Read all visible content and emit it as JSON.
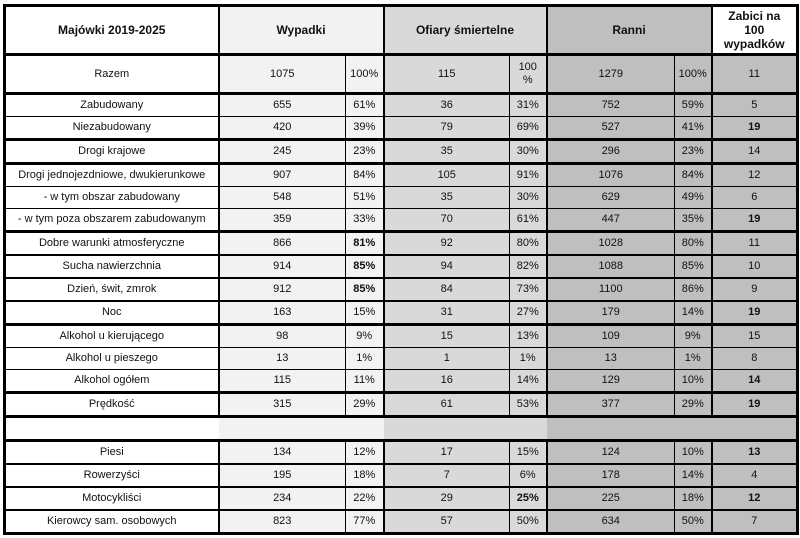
{
  "table": {
    "headers": {
      "label": "Majówki 2019-2025",
      "wypadki": "Wypadki",
      "ofiary": "Ofiary śmiertelne",
      "ranni": "Ranni",
      "zabici": "Zabici na\n100\nwypadków"
    },
    "colors": {
      "label_bg": "#ffffff",
      "wypadki_bg": "#f2f2f2",
      "ofiary_bg": "#d9d9d9",
      "ranni_bg": "#bfbfbf",
      "zabici_bg": "#bfbfbf",
      "border": "#000000",
      "text": "#111111"
    },
    "rows": [
      {
        "label": "Razem",
        "wypadki": "1075",
        "wypadki_pct": "100%",
        "ofiary": "115",
        "ofiary_pct": "100\n%",
        "ranni": "1279",
        "ranni_pct": "100%",
        "zabici_na_100": "11",
        "bold_cells": [],
        "separator": "heavy",
        "tall": true
      },
      {
        "label": "Zabudowany",
        "wypadki": "655",
        "wypadki_pct": "61%",
        "ofiary": "36",
        "ofiary_pct": "31%",
        "ranni": "752",
        "ranni_pct": "59%",
        "zabici_na_100": "5",
        "bold_cells": [],
        "separator": "thin"
      },
      {
        "label": "Niezabudowany",
        "wypadki": "420",
        "wypadki_pct": "39%",
        "ofiary": "79",
        "ofiary_pct": "69%",
        "ranni": "527",
        "ranni_pct": "41%",
        "zabici_na_100": "19",
        "bold_cells": [
          "zabici_na_100"
        ],
        "separator": "heavy"
      },
      {
        "label": "Drogi krajowe",
        "wypadki": "245",
        "wypadki_pct": "23%",
        "ofiary": "35",
        "ofiary_pct": "30%",
        "ranni": "296",
        "ranni_pct": "23%",
        "zabici_na_100": "14",
        "bold_cells": [],
        "separator": "heavy"
      },
      {
        "label": "Drogi jednojezdniowe, dwukierunkowe",
        "wypadki": "907",
        "wypadki_pct": "84%",
        "ofiary": "105",
        "ofiary_pct": "91%",
        "ranni": "1076",
        "ranni_pct": "84%",
        "zabici_na_100": "12",
        "bold_cells": [],
        "separator": "thin"
      },
      {
        "label": "- w tym obszar zabudowany",
        "wypadki": "548",
        "wypadki_pct": "51%",
        "ofiary": "35",
        "ofiary_pct": "30%",
        "ranni": "629",
        "ranni_pct": "49%",
        "zabici_na_100": "6",
        "bold_cells": [],
        "separator": "thin"
      },
      {
        "label": "- w tym poza obszarem zabudowanym",
        "wypadki": "359",
        "wypadki_pct": "33%",
        "ofiary": "70",
        "ofiary_pct": "61%",
        "ranni": "447",
        "ranni_pct": "35%",
        "zabici_na_100": "19",
        "bold_cells": [
          "zabici_na_100"
        ],
        "separator": "heavy"
      },
      {
        "label": "Dobre warunki atmosferyczne",
        "wypadki": "866",
        "wypadki_pct": "81%",
        "ofiary": "92",
        "ofiary_pct": "80%",
        "ranni": "1028",
        "ranni_pct": "80%",
        "zabici_na_100": "11",
        "bold_cells": [
          "wypadki_pct"
        ],
        "separator": "medium"
      },
      {
        "label": "Sucha nawierzchnia",
        "wypadki": "914",
        "wypadki_pct": "85%",
        "ofiary": "94",
        "ofiary_pct": "82%",
        "ranni": "1088",
        "ranni_pct": "85%",
        "zabici_na_100": "10",
        "bold_cells": [
          "wypadki_pct"
        ],
        "separator": "medium"
      },
      {
        "label": "Dzień, świt, zmrok",
        "wypadki": "912",
        "wypadki_pct": "85%",
        "ofiary": "84",
        "ofiary_pct": "73%",
        "ranni": "1100",
        "ranni_pct": "86%",
        "zabici_na_100": "9",
        "bold_cells": [
          "wypadki_pct"
        ],
        "separator": "medium"
      },
      {
        "label": "Noc",
        "wypadki": "163",
        "wypadki_pct": "15%",
        "ofiary": "31",
        "ofiary_pct": "27%",
        "ranni": "179",
        "ranni_pct": "14%",
        "zabici_na_100": "19",
        "bold_cells": [
          "zabici_na_100"
        ],
        "separator": "heavy"
      },
      {
        "label": "Alkohol u kierującego",
        "wypadki": "98",
        "wypadki_pct": "9%",
        "ofiary": "15",
        "ofiary_pct": "13%",
        "ranni": "109",
        "ranni_pct": "9%",
        "zabici_na_100": "15",
        "bold_cells": [],
        "separator": "thin"
      },
      {
        "label": "Alkohol u pieszego",
        "wypadki": "13",
        "wypadki_pct": "1%",
        "ofiary": "1",
        "ofiary_pct": "1%",
        "ranni": "13",
        "ranni_pct": "1%",
        "zabici_na_100": "8",
        "bold_cells": [],
        "separator": "thin"
      },
      {
        "label": "Alkohol ogółem",
        "wypadki": "115",
        "wypadki_pct": "11%",
        "ofiary": "16",
        "ofiary_pct": "14%",
        "ranni": "129",
        "ranni_pct": "10%",
        "zabici_na_100": "14",
        "bold_cells": [
          "zabici_na_100"
        ],
        "separator": "heavy"
      },
      {
        "label": "Prędkość",
        "wypadki": "315",
        "wypadki_pct": "29%",
        "ofiary": "61",
        "ofiary_pct": "53%",
        "ranni": "377",
        "ranni_pct": "29%",
        "zabici_na_100": "19",
        "bold_cells": [
          "zabici_na_100"
        ],
        "separator": "heavy"
      },
      {
        "label": "",
        "wypadki": "",
        "wypadki_pct": "",
        "ofiary": "",
        "ofiary_pct": "",
        "ranni": "",
        "ranni_pct": "",
        "zabici_na_100": "",
        "bold_cells": [],
        "separator": "heavy",
        "empty": true
      },
      {
        "label": "Piesi",
        "wypadki": "134",
        "wypadki_pct": "12%",
        "ofiary": "17",
        "ofiary_pct": "15%",
        "ranni": "124",
        "ranni_pct": "10%",
        "zabici_na_100": "13",
        "bold_cells": [
          "zabici_na_100"
        ],
        "separator": "medium"
      },
      {
        "label": "Rowerzyści",
        "wypadki": "195",
        "wypadki_pct": "18%",
        "ofiary": "7",
        "ofiary_pct": "6%",
        "ranni": "178",
        "ranni_pct": "14%",
        "zabici_na_100": "4",
        "bold_cells": [],
        "separator": "medium"
      },
      {
        "label": "Motocykliści",
        "wypadki": "234",
        "wypadki_pct": "22%",
        "ofiary": "29",
        "ofiary_pct": "25%",
        "ranni": "225",
        "ranni_pct": "18%",
        "zabici_na_100": "12",
        "bold_cells": [
          "ofiary_pct",
          "zabici_na_100"
        ],
        "separator": "medium"
      },
      {
        "label": "Kierowcy sam. osobowych",
        "wypadki": "823",
        "wypadki_pct": "77%",
        "ofiary": "57",
        "ofiary_pct": "50%",
        "ranni": "634",
        "ranni_pct": "50%",
        "zabici_na_100": "7",
        "bold_cells": [],
        "separator": "heavy"
      }
    ]
  }
}
